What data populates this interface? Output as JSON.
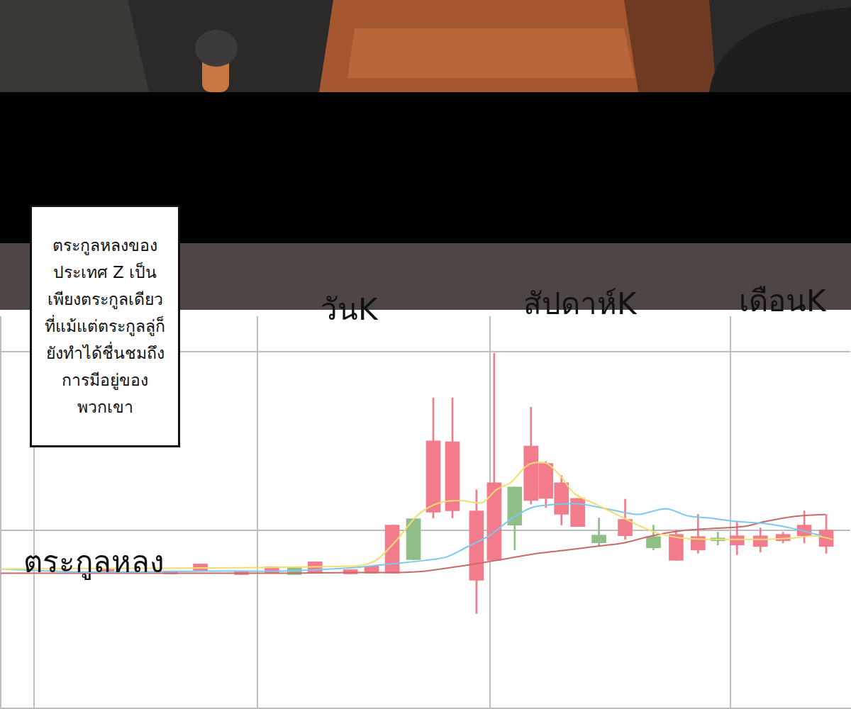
{
  "caption": [
    "ตระกูลหลงของ",
    "ประเทศ Z เป็น",
    "เพียงตระกูลเดียว",
    "ที่แม้แต่ตระกูลลู่ก็",
    "ยังทำได้ชื่นชมถึง",
    "การมีอยู่ของ",
    "พวกเขา"
  ],
  "chart_data": {
    "type": "candlestick",
    "annotations": [
      "วันK",
      "สัปดาห์K",
      "เดือนK",
      "ตระกูลหลง"
    ],
    "x": [
      15.0,
      24.0,
      28.2,
      34.0,
      38.3,
      41.5,
      44.4,
      49.4,
      52.4,
      55.3,
      58.3,
      61.1,
      63.8,
      67.2,
      69.7,
      72.6,
      74.9,
      77.0,
      79.2,
      81.5,
      84.5,
      88.2,
      92.2,
      95.4,
      98.5,
      101.3,
      104.0,
      107.3,
      110.5,
      113.5,
      116.6
    ],
    "open": [
      38.3,
      37.7,
      38.5,
      37.5,
      37.9,
      39.5,
      37.9,
      37.7,
      37.9,
      37.9,
      53.2,
      55.0,
      55.4,
      35.9,
      41.5,
      62.1,
      58.3,
      58.9,
      54.4,
      51.0,
      48.6,
      48.4,
      48.2,
      41.5,
      44.4,
      47.8,
      45.8,
      45.4,
      47.0,
      48.4,
      45.4
    ],
    "close": [
      39.1,
      38.5,
      40.5,
      38.3,
      39.7,
      37.5,
      41.1,
      38.9,
      39.9,
      51.4,
      41.7,
      75.0,
      74.8,
      55.4,
      63.3,
      51.4,
      73.6,
      68.7,
      63.3,
      58.9,
      46.4,
      53.0,
      45.0,
      48.8,
      48.2,
      47.0,
      48.4,
      48.4,
      48.8,
      51.4,
      50.0
    ],
    "high": [
      39.1,
      38.5,
      40.5,
      38.3,
      39.7,
      39.5,
      41.1,
      38.9,
      39.9,
      51.4,
      53.2,
      87.1,
      87.1,
      61.3,
      99.6,
      62.1,
      84.5,
      69.2,
      65.3,
      58.9,
      53.4,
      58.7,
      51.4,
      50.0,
      54.4,
      49.4,
      52.4,
      50.6,
      49.4,
      55.4,
      54.4
    ],
    "low": [
      38.3,
      37.7,
      38.5,
      37.5,
      37.9,
      37.5,
      37.9,
      37.7,
      37.9,
      37.9,
      41.7,
      53.4,
      53.4,
      26.6,
      41.5,
      44.4,
      57.3,
      56.3,
      51.4,
      51.0,
      45.4,
      47.4,
      44.4,
      41.5,
      43.5,
      45.8,
      43.1,
      43.8,
      46.4,
      46.4,
      43.5
    ],
    "colors": [
      "#f27b8c",
      "#f27b8c",
      "#f27b8c",
      "#f27b8c",
      "#f27b8c",
      "#8fbf87",
      "#f27b8c",
      "#f27b8c",
      "#f27b8c",
      "#f27b8c",
      "#8fbf87",
      "#f27b8c",
      "#f27b8c",
      "#f27b8c",
      "#f27b8c",
      "#8fbf87",
      "#f27b8c",
      "#f27b8c",
      "#f27b8c",
      "#f27b8c",
      "#8fbf87",
      "#f27b8c",
      "#8fbf87",
      "#f27b8c",
      "#f27b8c",
      "#8fbf87",
      "#f27b8c",
      "#f27b8c",
      "#f27b8c",
      "#f27b8c",
      "#f27b8c"
    ],
    "series": [
      {
        "type": "line",
        "color": "#f5dc6e",
        "x": [
          0,
          50,
          53,
          56,
          59,
          62,
          65,
          68,
          70,
          72,
          74.5,
          77,
          79,
          81,
          84,
          87,
          90,
          93,
          96,
          100,
          104,
          108,
          112,
          115,
          117.5
        ],
        "values": [
          39.1,
          39.9,
          41.5,
          47.4,
          54.4,
          57.7,
          58.3,
          57.7,
          61.3,
          63.3,
          68.3,
          68.8,
          65.3,
          60.3,
          57.3,
          54.4,
          51.4,
          49.0,
          47.8,
          47.4,
          47.4,
          47.4,
          47.8,
          48.4,
          47.4
        ]
      },
      {
        "type": "line",
        "color": "#7dc8f0",
        "x": [
          0,
          10,
          20,
          30,
          40,
          50,
          55,
          60,
          63,
          66,
          69,
          72,
          75,
          79,
          82,
          86,
          90,
          94,
          97,
          100,
          104,
          108,
          112,
          116
        ],
        "values": [
          39.1,
          38.3,
          38.3,
          38.5,
          38.5,
          39.5,
          40.5,
          41.5,
          42.5,
          45.4,
          48.4,
          53.0,
          56.3,
          57.3,
          57.3,
          55.8,
          54.4,
          56.0,
          54.0,
          53.4,
          52.4,
          51.8,
          50.4,
          48.4
        ]
      },
      {
        "type": "line",
        "color": "#c96a6a",
        "x": [
          0,
          20,
          40,
          50,
          56,
          60,
          65,
          70,
          76,
          80,
          84,
          88,
          92,
          96,
          100,
          105,
          108,
          112,
          116.5
        ],
        "values": [
          37.9,
          37.9,
          37.9,
          38.1,
          38.1,
          38.5,
          39.9,
          41.5,
          43.5,
          44.4,
          45.4,
          46.4,
          48.4,
          49.8,
          50.4,
          51.0,
          52.4,
          53.8,
          54.4
        ]
      }
    ],
    "xlim": [
      0,
      120
    ],
    "xticks": [
      20.5,
      52.1,
      86.1
    ],
    "ylim": [
      0,
      110
    ],
    "yticks": [
      50,
      100
    ],
    "grid": true,
    "tick_labels": false
  }
}
